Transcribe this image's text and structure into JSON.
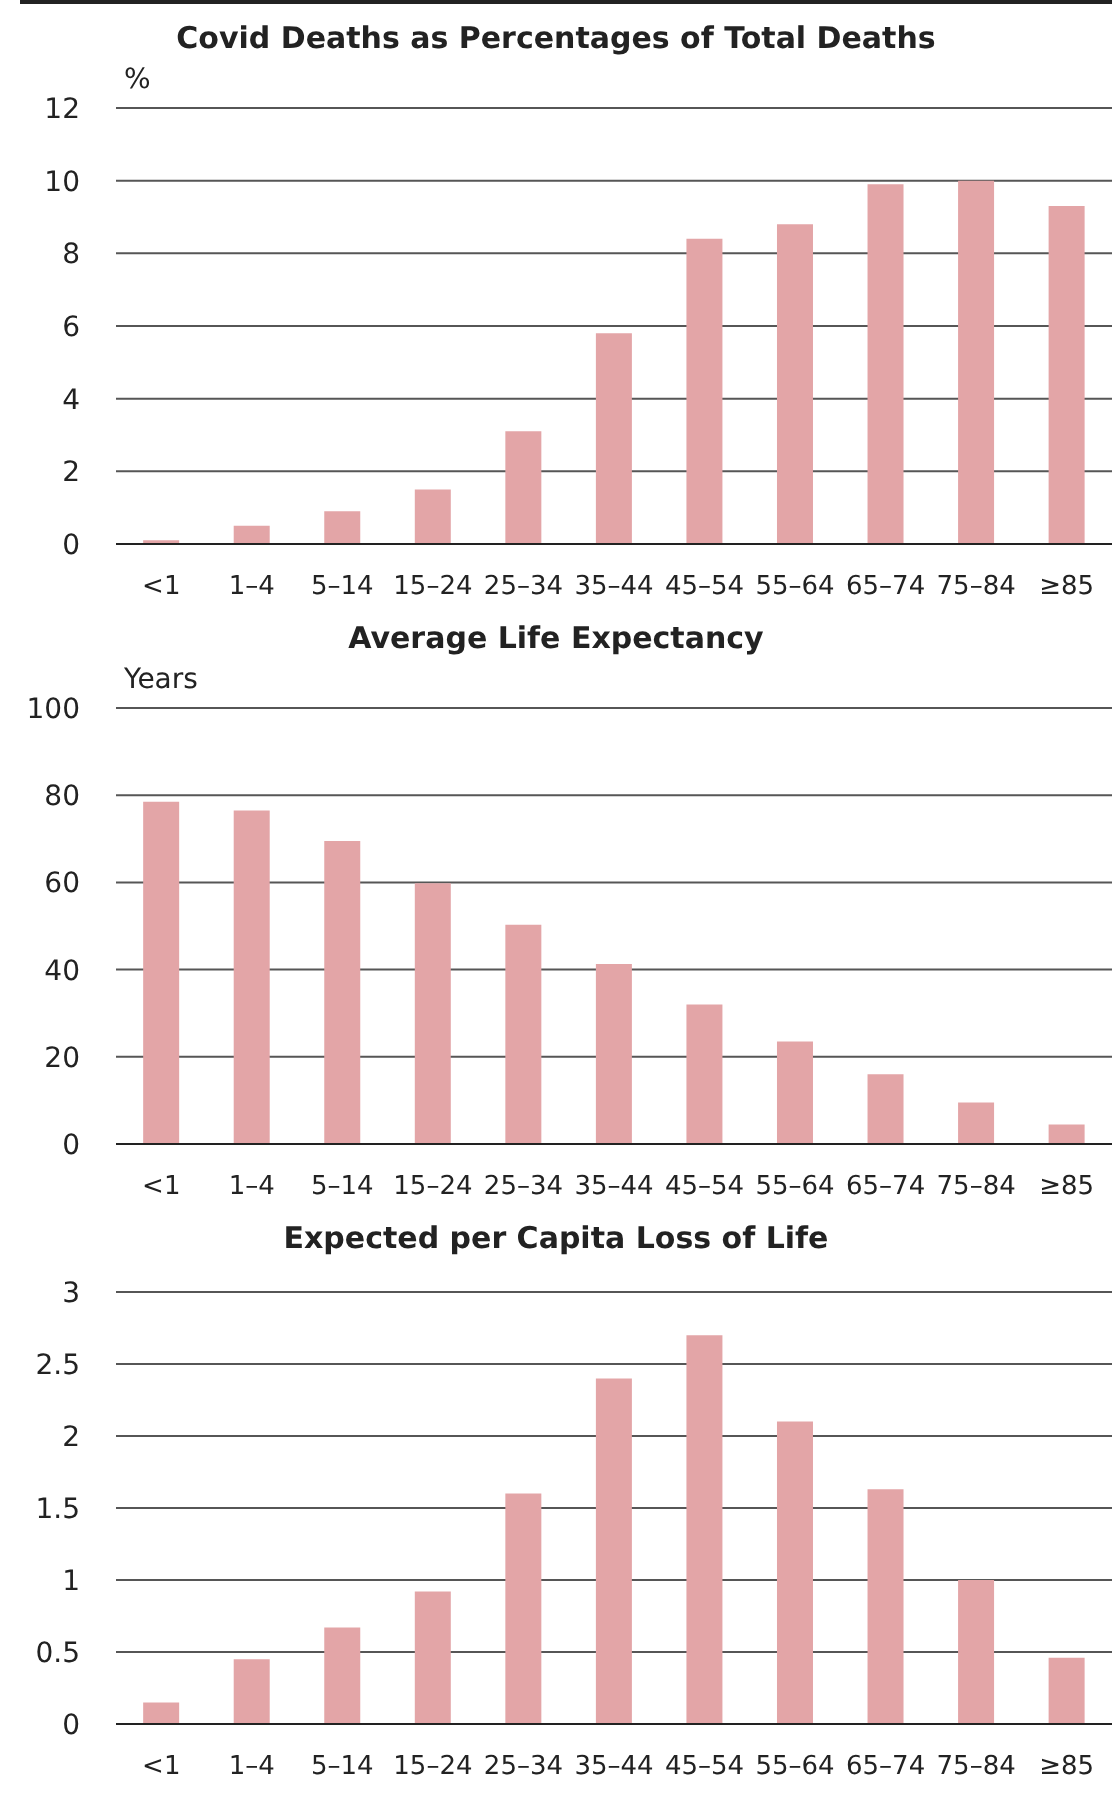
{
  "chart_data": [
    {
      "type": "bar",
      "title": "Covid Deaths as Percentages of Total Deaths",
      "ylabel": "%",
      "categories": [
        "<1",
        "1–4",
        "5–14",
        "15–24",
        "25–34",
        "35–44",
        "45–54",
        "55–64",
        "65–74",
        "75–84",
        "≥85"
      ],
      "values": [
        0.1,
        0.5,
        0.9,
        1.5,
        3.1,
        5.8,
        8.4,
        8.8,
        9.9,
        10.0,
        9.3
      ],
      "color": "#e3a5a7",
      "ylim": [
        0,
        12
      ],
      "yticks": [
        0,
        2,
        4,
        6,
        8,
        10,
        12
      ],
      "grid": "y"
    },
    {
      "type": "bar",
      "title": "Average Life Expectancy",
      "ylabel": "Years",
      "categories": [
        "<1",
        "1–4",
        "5–14",
        "15–24",
        "25–34",
        "35–44",
        "45–54",
        "55–64",
        "65–74",
        "75–84",
        "≥85"
      ],
      "values": [
        78.5,
        76.5,
        69.5,
        59.8,
        50.3,
        41.3,
        32,
        23.5,
        16,
        9.5,
        4.5
      ],
      "color": "#e3a5a7",
      "ylim": [
        0,
        100
      ],
      "yticks": [
        0,
        20,
        40,
        60,
        80,
        100
      ],
      "grid": "y"
    },
    {
      "type": "bar",
      "title": "Expected per Capita Loss of Life",
      "categories": [
        "<1",
        "1–4",
        "5–14",
        "15–24",
        "25–34",
        "35–44",
        "45–54",
        "55–64",
        "65–74",
        "75–84",
        "≥85"
      ],
      "values": [
        0.15,
        0.45,
        0.67,
        0.92,
        1.6,
        2.4,
        2.7,
        2.1,
        1.63,
        1.0,
        0.46
      ],
      "color": "#e3a5a7",
      "ylim": [
        0,
        3
      ],
      "yticks": [
        0,
        0.5,
        1,
        1.5,
        2,
        2.5,
        3
      ],
      "grid": "y"
    }
  ]
}
